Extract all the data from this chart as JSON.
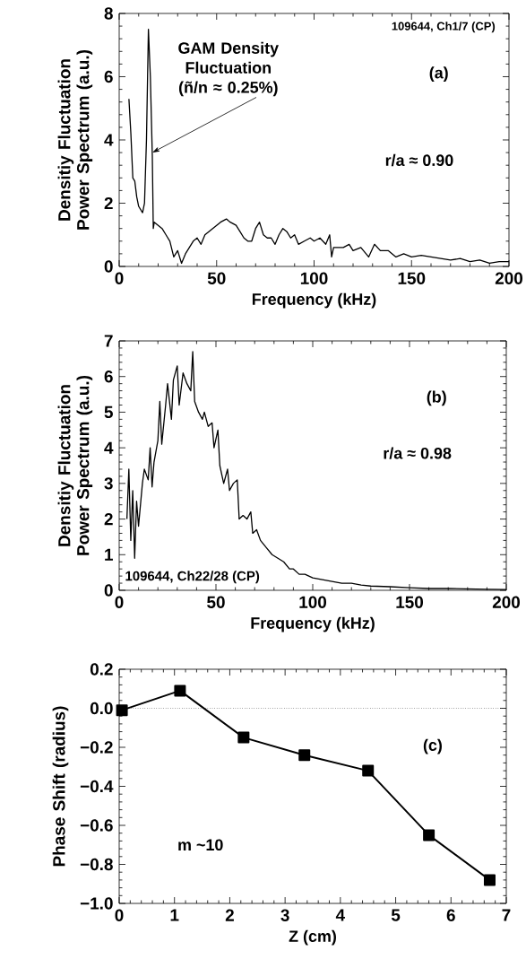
{
  "chart_data": [
    {
      "type": "line",
      "xlabel": "Frequency (kHz)",
      "ylabel": "Densitiy Fluctuation Power Spectrum (a.u.)",
      "xlim": [
        0,
        200
      ],
      "ylim": [
        0,
        8
      ],
      "xticks": [
        0,
        50,
        100,
        150,
        200
      ],
      "yticks": [
        0,
        2,
        4,
        6,
        8
      ],
      "marker": "none",
      "line_style": "solid",
      "annotations": [
        "109644, Ch1/7 (CP)",
        "(a)",
        "r/a ≈ 0.90",
        {
          "text": "GAM Density Fluctuation (ñ/n ≈ 0.25%)",
          "x": 17,
          "y": 3.6
        }
      ],
      "series": [
        {
          "color": "#000000",
          "x": [
            5,
            6,
            7,
            8,
            9,
            10,
            12,
            13,
            14,
            15,
            16,
            17,
            17.5,
            18,
            20,
            22,
            24,
            26,
            28,
            30,
            32,
            34,
            36,
            38,
            40,
            42,
            44,
            46,
            48,
            50,
            52,
            55,
            57,
            60,
            62,
            64,
            66,
            68,
            70,
            72,
            74,
            76,
            78,
            80,
            82,
            84,
            86,
            88,
            90,
            92,
            95,
            98,
            100,
            103,
            106,
            108,
            109,
            110,
            115,
            118,
            120,
            124,
            128,
            131,
            134,
            138,
            142,
            146,
            150,
            155,
            160,
            165,
            170,
            175,
            180,
            185,
            190,
            195,
            200
          ],
          "values": [
            5.3,
            4.2,
            2.8,
            2.7,
            2.2,
            1.9,
            1.7,
            2.0,
            4.0,
            7.5,
            6.0,
            3.5,
            1.2,
            1.4,
            1.3,
            1.2,
            1.0,
            0.8,
            0.3,
            0.5,
            0.1,
            0.4,
            0.6,
            0.8,
            0.9,
            0.7,
            1.0,
            1.1,
            1.2,
            1.3,
            1.4,
            1.5,
            1.4,
            1.3,
            1.1,
            0.9,
            0.8,
            0.8,
            1.2,
            1.4,
            1.0,
            0.9,
            0.9,
            0.7,
            1.0,
            1.2,
            1.1,
            0.9,
            1.0,
            0.7,
            0.8,
            0.9,
            0.8,
            0.9,
            0.7,
            1.0,
            0.3,
            0.6,
            0.6,
            0.7,
            0.5,
            0.6,
            0.3,
            0.7,
            0.5,
            0.5,
            0.3,
            0.4,
            0.3,
            0.35,
            0.3,
            0.25,
            0.2,
            0.25,
            0.15,
            0.2,
            0.1,
            0.15,
            0.15
          ]
        }
      ]
    },
    {
      "type": "line",
      "xlabel": "Frequency (kHz)",
      "ylabel": "Densitiy Fluctuation Power Spectrum (a.u.)",
      "xlim": [
        0,
        200
      ],
      "ylim": [
        0,
        7
      ],
      "xticks": [
        0,
        50,
        100,
        150,
        200
      ],
      "yticks": [
        0,
        1,
        2,
        3,
        4,
        5,
        6,
        7
      ],
      "marker": "none",
      "line_style": "solid",
      "annotations": [
        "(b)",
        "r/a ≈ 0.98",
        "109644, Ch22/28 (CP)"
      ],
      "series": [
        {
          "color": "#000000",
          "x": [
            4,
            5,
            6,
            7,
            8,
            9,
            10,
            12,
            13,
            15,
            16,
            17,
            18,
            20,
            21,
            22,
            24,
            25,
            27,
            28,
            30,
            31,
            33,
            35,
            37,
            38,
            39,
            41,
            43,
            44,
            46,
            48,
            49,
            51,
            52,
            54,
            56,
            57,
            59,
            61,
            62,
            64,
            66,
            68,
            69,
            71,
            73,
            76,
            79,
            82,
            85,
            88,
            90,
            93,
            96,
            100,
            105,
            110,
            115,
            120,
            125,
            130,
            140,
            150,
            160,
            170,
            180,
            190,
            200
          ],
          "values": [
            2.0,
            3.4,
            1.4,
            2.8,
            0.9,
            2.5,
            1.8,
            3.0,
            3.4,
            3.1,
            4.0,
            2.9,
            3.6,
            4.2,
            5.3,
            4.1,
            5.2,
            5.8,
            4.8,
            5.9,
            6.3,
            5.2,
            6.1,
            5.8,
            5.6,
            6.7,
            5.3,
            5.0,
            4.8,
            5.0,
            4.6,
            4.7,
            4.0,
            4.5,
            3.5,
            3.0,
            3.4,
            2.8,
            3.0,
            3.1,
            2.0,
            2.1,
            2.0,
            2.2,
            1.6,
            1.7,
            1.4,
            1.2,
            1.0,
            0.9,
            0.8,
            0.6,
            0.6,
            0.45,
            0.45,
            0.35,
            0.3,
            0.25,
            0.2,
            0.2,
            0.15,
            0.12,
            0.1,
            0.07,
            0.05,
            0.05,
            0.04,
            0.03,
            0.02
          ]
        }
      ]
    },
    {
      "type": "line",
      "xlabel": "Z (cm)",
      "ylabel": "Phase Shift (radius)",
      "xlim": [
        0,
        7
      ],
      "ylim": [
        -1.0,
        0.2
      ],
      "xticks": [
        0,
        1,
        2,
        3,
        4,
        5,
        6,
        7
      ],
      "yticks": [
        {
          "value": -1.0,
          "label": "−1.0"
        },
        {
          "value": -0.8,
          "label": "−0.8"
        },
        {
          "value": -0.6,
          "label": "−0.6"
        },
        {
          "value": -0.4,
          "label": "−0.4"
        },
        {
          "value": -0.2,
          "label": "−0.2"
        },
        {
          "value": 0.0,
          "label": "0.0"
        },
        {
          "value": 0.2,
          "label": "0.2"
        }
      ],
      "marker": "square",
      "line_style": "solid",
      "ref_lines": [
        {
          "axis": "y",
          "value": 0,
          "line_style": "dotted"
        }
      ],
      "annotations": [
        "(c)",
        "m ~10"
      ],
      "series": [
        {
          "color": "#000000",
          "x": [
            0.05,
            1.1,
            2.25,
            3.35,
            4.5,
            5.6,
            6.7
          ],
          "values": [
            -0.01,
            0.09,
            -0.15,
            -0.24,
            -0.32,
            -0.65,
            -0.88
          ]
        }
      ]
    }
  ]
}
